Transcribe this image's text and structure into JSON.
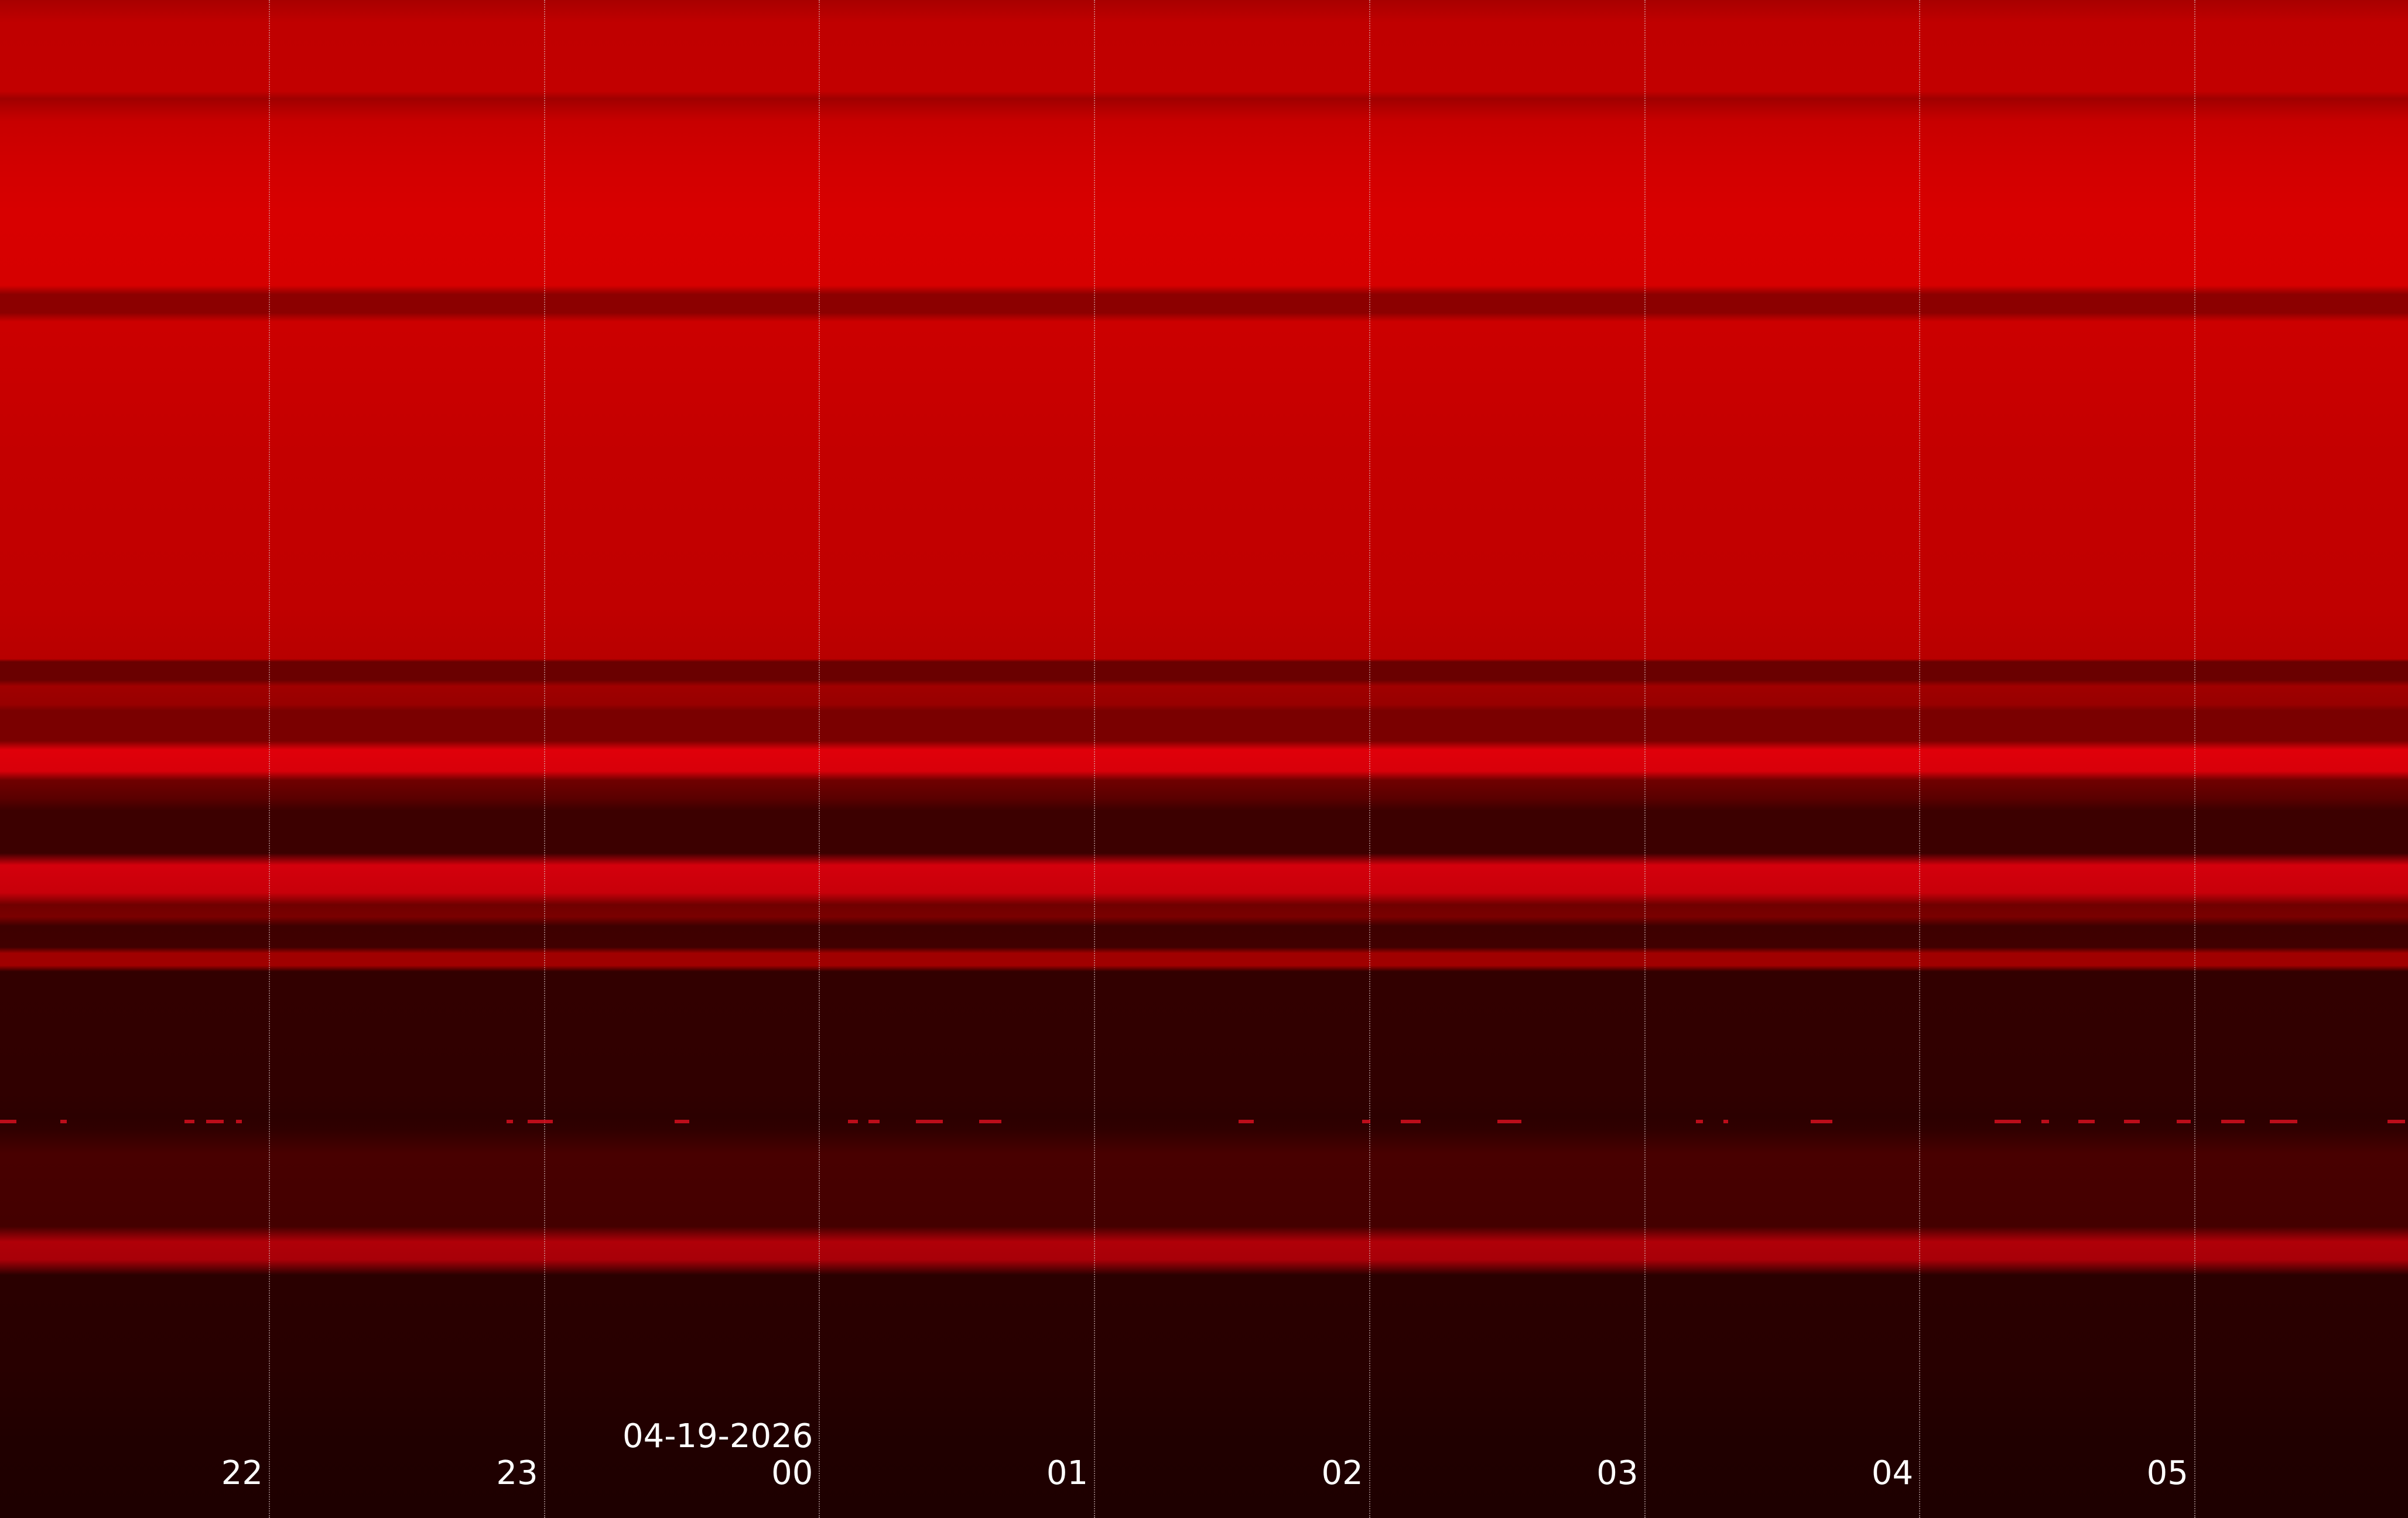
{
  "chart_data": {
    "type": "heatmap",
    "title": "",
    "xlabel": "",
    "ylabel": "",
    "x_tick_labels": [
      "22",
      "23",
      "00",
      "01",
      "02",
      "03",
      "04",
      "05"
    ],
    "date_label": "04-19-2026",
    "date_label_at_tick": "00",
    "grid": true,
    "colormap": "black-to-red"
  }
}
